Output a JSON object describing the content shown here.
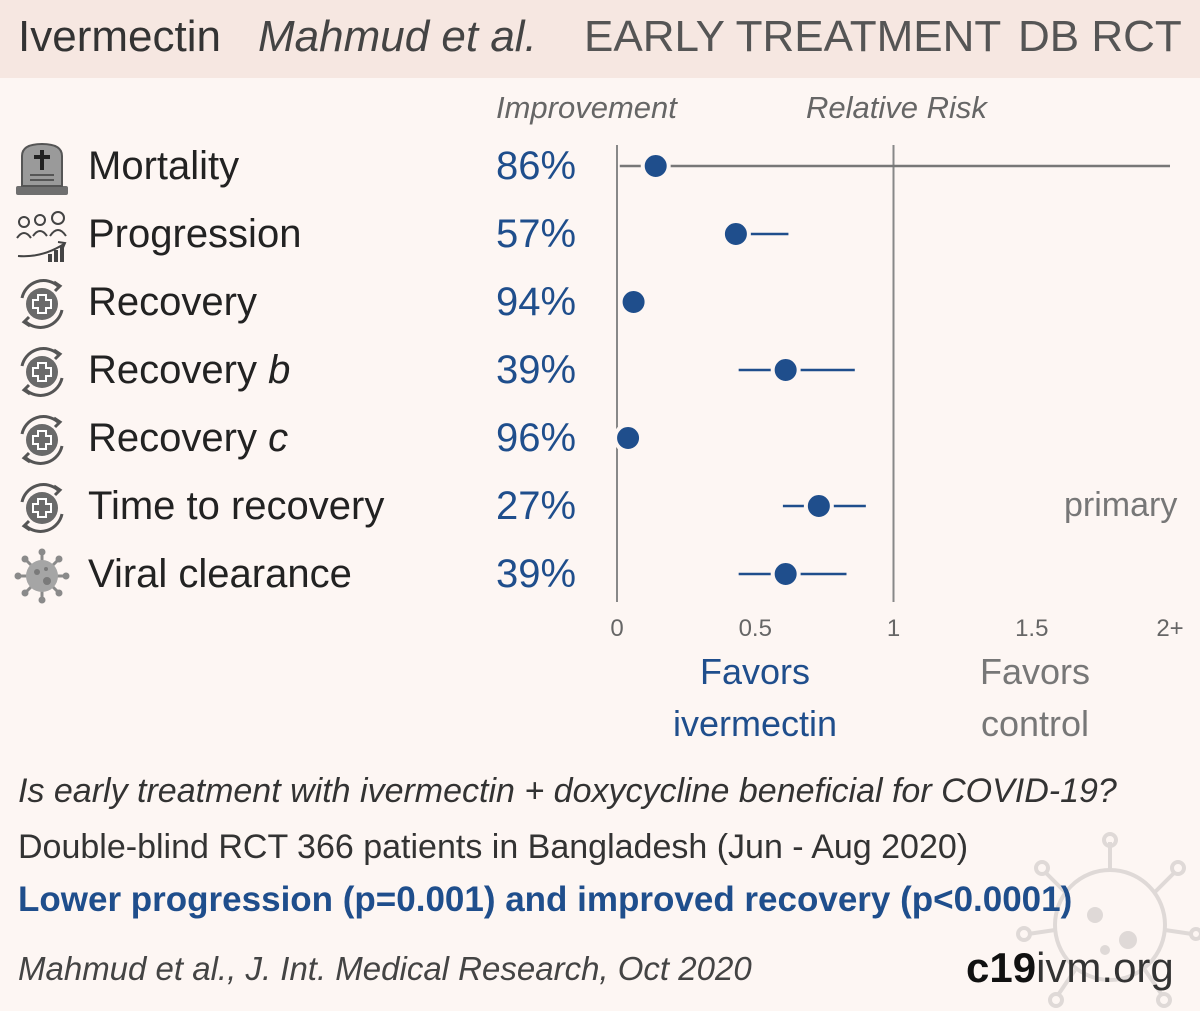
{
  "header": {
    "drug": "Ivermectin",
    "authors": "Mahmud et al.",
    "stage": "EARLY TREATMENT",
    "design": "DB RCT"
  },
  "column_headers": {
    "improvement": "Improvement",
    "relative_risk": "Relative Risk"
  },
  "rows": [
    {
      "label": "Mortality",
      "improvement": "86%",
      "icon": "tombstone-icon"
    },
    {
      "label": "Progression",
      "improvement": "57%",
      "icon": "progression-icon"
    },
    {
      "label": "Recovery",
      "improvement": "94%",
      "icon": "recovery-icon"
    },
    {
      "label": "Recovery",
      "label_suffix": "b",
      "improvement": "39%",
      "icon": "recovery-icon"
    },
    {
      "label": "Recovery",
      "label_suffix": "c",
      "improvement": "96%",
      "icon": "recovery-icon"
    },
    {
      "label": "Time to recovery",
      "improvement": "27%",
      "icon": "recovery-icon",
      "note": "primary"
    },
    {
      "label": "Viral clearance",
      "improvement": "39%",
      "icon": "virus-icon"
    }
  ],
  "chart_data": {
    "type": "scatter",
    "subtype": "forest-plot",
    "title": "Relative Risk",
    "x_ticks": [
      "0",
      "0.5",
      "1",
      "1.5",
      "2+"
    ],
    "xlim": [
      0,
      2
    ],
    "reference_line": 1,
    "series": [
      {
        "name": "Mortality",
        "rr": 0.14,
        "ci_low": 0.01,
        "ci_high": 2.0,
        "ci_truncated": true
      },
      {
        "name": "Progression",
        "rr": 0.43,
        "ci_low": 0.43,
        "ci_high": 0.62
      },
      {
        "name": "Recovery",
        "rr": 0.06,
        "ci_low": 0.06,
        "ci_high": 0.06
      },
      {
        "name": "Recovery b",
        "rr": 0.61,
        "ci_low": 0.44,
        "ci_high": 0.86
      },
      {
        "name": "Recovery c",
        "rr": 0.04,
        "ci_low": 0.04,
        "ci_high": 0.04
      },
      {
        "name": "Time to recovery",
        "rr": 0.73,
        "ci_low": 0.6,
        "ci_high": 0.9
      },
      {
        "name": "Viral clearance",
        "rr": 0.61,
        "ci_low": 0.44,
        "ci_high": 0.83
      }
    ],
    "favors_left": "Favors ivermectin",
    "favors_right": "Favors control"
  },
  "favors": {
    "left_line1": "Favors",
    "left_line2": "ivermectin",
    "right_line1": "Favors",
    "right_line2": "control"
  },
  "summary": {
    "question": "Is early treatment with ivermectin + doxycycline beneficial for COVID-19?",
    "design": "Double-blind RCT 366 patients in Bangladesh (Jun - Aug 2020)",
    "conclusion": "Lower progression (p=0.001) and improved recovery (p<0.0001)",
    "citation": "Mahmud et al., J. Int. Medical Research, Oct 2020",
    "site_bold": "c19",
    "site_rest": "ivm.org"
  },
  "colors": {
    "accent": "#1f4e8c",
    "header_bg": "#f6e7e1",
    "page_bg": "#fdf6f3",
    "axis": "#888888"
  }
}
